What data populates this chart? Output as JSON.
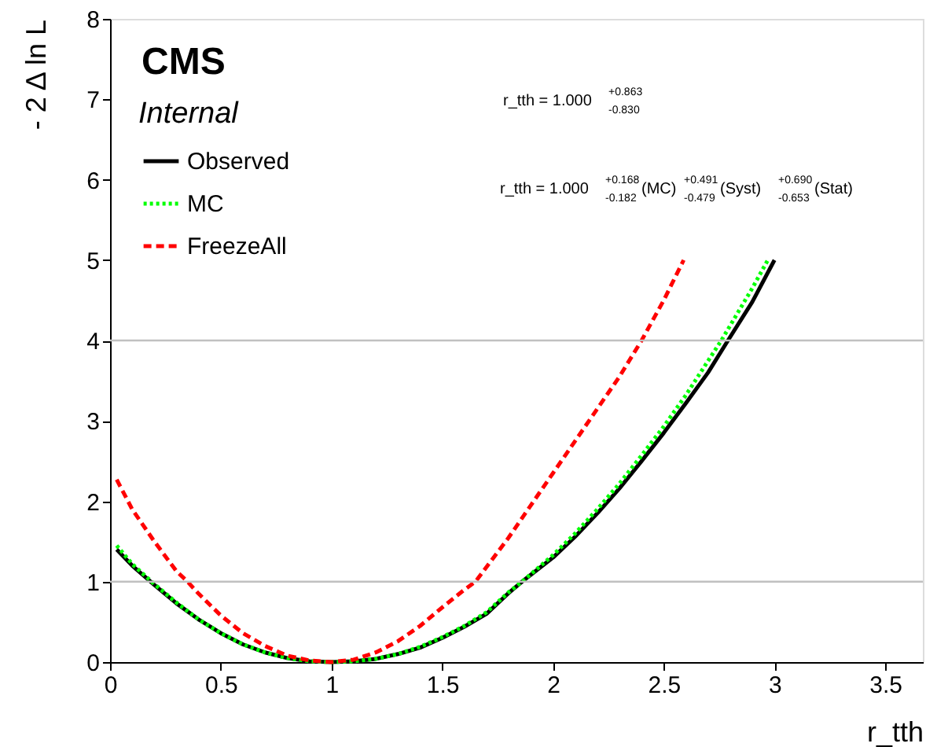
{
  "chart_data": {
    "type": "line",
    "xlabel": "r_tth",
    "ylabel": "- 2 Δ ln L",
    "xlim": [
      0,
      3.67
    ],
    "ylim": [
      0,
      8
    ],
    "xticks": [
      0,
      0.5,
      1,
      1.5,
      2,
      2.5,
      3,
      3.5
    ],
    "yticks": [
      0,
      1,
      2,
      3,
      4,
      5,
      6,
      7,
      8
    ],
    "grid": false,
    "legend": "top left",
    "series": [
      {
        "name": "Observed",
        "color": "#000000",
        "line_style": "solid",
        "x": [
          0.03,
          0.1,
          0.2,
          0.3,
          0.4,
          0.5,
          0.6,
          0.7,
          0.8,
          0.9,
          1.0,
          1.1,
          1.2,
          1.3,
          1.4,
          1.5,
          1.6,
          1.7,
          1.8,
          1.86,
          2.0,
          2.1,
          2.2,
          2.3,
          2.4,
          2.5,
          2.6,
          2.7,
          2.79,
          2.9,
          3.0
        ],
        "values": [
          1.4,
          1.2,
          0.96,
          0.73,
          0.53,
          0.36,
          0.22,
          0.12,
          0.05,
          0.01,
          0,
          0.01,
          0.04,
          0.1,
          0.18,
          0.3,
          0.44,
          0.6,
          0.86,
          1.0,
          1.3,
          1.56,
          1.85,
          2.16,
          2.5,
          2.85,
          3.22,
          3.6,
          4.0,
          4.48,
          5.0
        ]
      },
      {
        "name": "MC",
        "color": "#00ff00",
        "line_style": "dotted",
        "x": [
          0.03,
          0.1,
          0.2,
          0.3,
          0.4,
          0.5,
          0.6,
          0.7,
          0.8,
          0.9,
          1.0,
          1.1,
          1.2,
          1.3,
          1.4,
          1.5,
          1.6,
          1.7,
          1.8,
          1.86,
          2.0,
          2.1,
          2.2,
          2.3,
          2.4,
          2.5,
          2.6,
          2.76,
          2.9,
          2.97
        ],
        "values": [
          1.45,
          1.22,
          0.97,
          0.74,
          0.53,
          0.36,
          0.22,
          0.12,
          0.05,
          0.01,
          0,
          0.01,
          0.04,
          0.1,
          0.19,
          0.31,
          0.45,
          0.62,
          0.87,
          1.0,
          1.33,
          1.6,
          1.9,
          2.22,
          2.57,
          2.93,
          3.32,
          4.0,
          4.65,
          5.0
        ]
      },
      {
        "name": "FreezeAll",
        "color": "#ff0000",
        "line_style": "dashed",
        "x": [
          0.03,
          0.1,
          0.2,
          0.3,
          0.35,
          0.4,
          0.5,
          0.6,
          0.7,
          0.8,
          0.9,
          1.0,
          1.1,
          1.2,
          1.3,
          1.4,
          1.5,
          1.6,
          1.65,
          1.8,
          1.9,
          2.0,
          2.1,
          2.2,
          2.3,
          2.4,
          2.5,
          2.59
        ],
        "values": [
          2.27,
          1.9,
          1.5,
          1.13,
          1.0,
          0.85,
          0.58,
          0.36,
          0.2,
          0.08,
          0.02,
          0,
          0.03,
          0.12,
          0.26,
          0.45,
          0.68,
          0.9,
          1.0,
          1.55,
          1.95,
          2.35,
          2.75,
          3.15,
          3.55,
          4.0,
          4.5,
          5.0
        ]
      }
    ],
    "ref_lines": [
      {
        "axis": "y",
        "value": 1,
        "color": "#c0c0c0"
      },
      {
        "axis": "y",
        "value": 4,
        "color": "#c0c0c0"
      }
    ],
    "annotations": [
      "CMS",
      "Internal",
      "r_tth = 1.000$^{+0.863}$$_{-0.830}$",
      "r_tth = 1.000$^{+0.168}$$_{-0.182}$ (MC)$^{+0.491}$$_{-0.479}$ (Syst)$^{+0.690}$$_{-0.653}$ (Stat)"
    ]
  }
}
